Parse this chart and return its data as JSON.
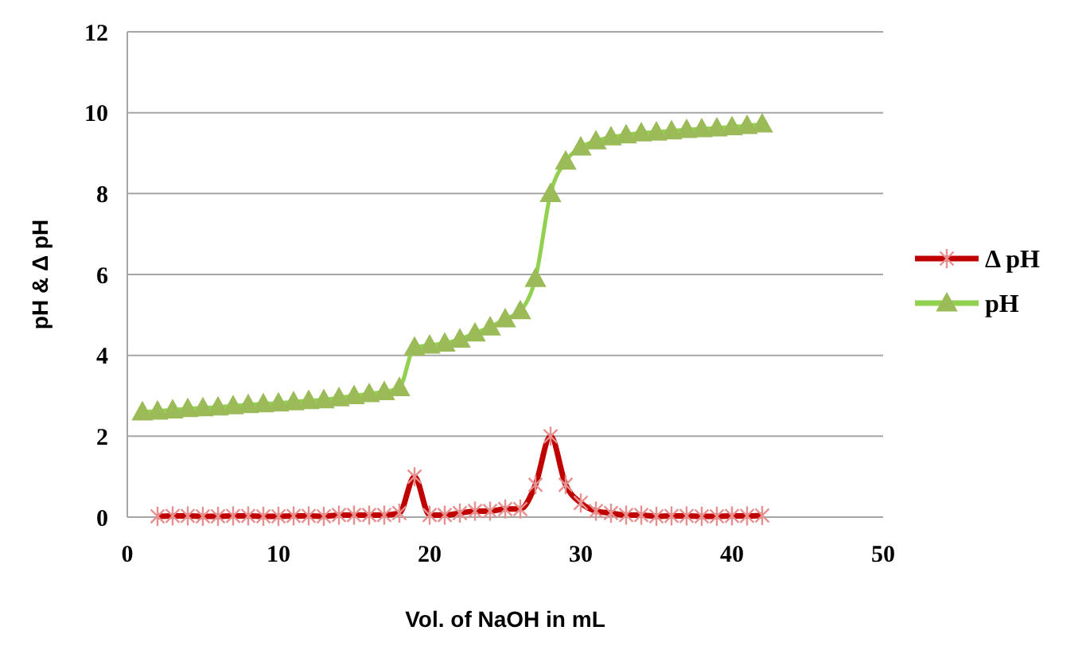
{
  "chart_data": {
    "type": "line",
    "xlabel": "Vol. of NaOH in mL",
    "ylabel": "pH & Δ pH",
    "xlim": [
      0,
      50
    ],
    "xticks": [
      0,
      10,
      20,
      30,
      40,
      50
    ],
    "ylim": [
      0,
      12
    ],
    "yticks": [
      0,
      2,
      4,
      6,
      8,
      10,
      12
    ],
    "grid": "y",
    "legend": "right",
    "line_style": "solid",
    "series": [
      {
        "name": "Δ pH",
        "color": "#c00000",
        "marker": "cross",
        "x": [
          2,
          3,
          4,
          5,
          6,
          7,
          8,
          9,
          10,
          11,
          12,
          13,
          14,
          15,
          16,
          17,
          18,
          19,
          20,
          21,
          22,
          23,
          24,
          25,
          26,
          27,
          28,
          29,
          30,
          31,
          32,
          33,
          34,
          35,
          36,
          37,
          38,
          39,
          40,
          41,
          42
        ],
        "values": [
          0.02,
          0.03,
          0.03,
          0.02,
          0.02,
          0.03,
          0.03,
          0.02,
          0.02,
          0.03,
          0.03,
          0.02,
          0.05,
          0.05,
          0.05,
          0.05,
          0.1,
          1.0,
          0.05,
          0.05,
          0.1,
          0.15,
          0.15,
          0.2,
          0.2,
          0.8,
          2.0,
          0.8,
          0.35,
          0.15,
          0.1,
          0.05,
          0.05,
          0.02,
          0.03,
          0.03,
          0.02,
          0.02,
          0.03,
          0.03,
          0.04
        ]
      },
      {
        "name": "pH",
        "color": "#92d050",
        "marker": "triangle",
        "x": [
          1,
          2,
          3,
          4,
          5,
          6,
          7,
          8,
          9,
          10,
          11,
          12,
          13,
          14,
          15,
          16,
          17,
          18,
          19,
          20,
          21,
          22,
          23,
          24,
          25,
          26,
          27,
          28,
          29,
          30,
          31,
          32,
          33,
          34,
          35,
          36,
          37,
          38,
          39,
          40,
          41,
          42
        ],
        "values": [
          2.6,
          2.62,
          2.65,
          2.68,
          2.7,
          2.72,
          2.75,
          2.78,
          2.8,
          2.82,
          2.85,
          2.88,
          2.9,
          2.95,
          3.0,
          3.05,
          3.1,
          3.2,
          4.2,
          4.25,
          4.3,
          4.4,
          4.55,
          4.7,
          4.9,
          5.1,
          5.9,
          8.0,
          8.8,
          9.15,
          9.3,
          9.4,
          9.45,
          9.5,
          9.52,
          9.55,
          9.58,
          9.6,
          9.62,
          9.65,
          9.68,
          9.72
        ]
      }
    ]
  }
}
